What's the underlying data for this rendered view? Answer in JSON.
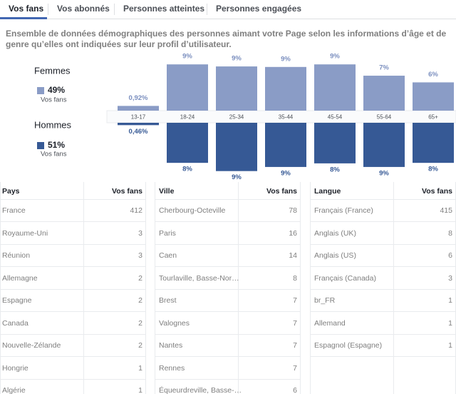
{
  "tabs": [
    "Vos fans",
    "Vos abonnés",
    "Personnes atteintes",
    "Personnes engagées"
  ],
  "description": "Ensemble de données démographiques des personnes aimant votre Page selon les informations d’âge et de genre qu’elles ont indiquées sur leur profil d’utilisateur.",
  "chart_data": {
    "type": "bar",
    "categories": [
      "13-17",
      "18-24",
      "25-34",
      "35-44",
      "45-54",
      "55-64",
      "65+"
    ],
    "series": [
      {
        "name": "Femmes",
        "color": "#8a9cc6",
        "share": {
          "value": 49,
          "label": "49%"
        },
        "share_caption": "Vos fans",
        "values": [
          0.92,
          9.0,
          8.6,
          8.5,
          9.0,
          6.8,
          5.5
        ],
        "value_labels": [
          "0,92%",
          "9%",
          "9%",
          "9%",
          "9%",
          "7%",
          "6%"
        ]
      },
      {
        "name": "Hommes",
        "color": "#365995",
        "share": {
          "value": 51,
          "label": "51%"
        },
        "share_caption": "Vos fans",
        "values": [
          0.46,
          7.8,
          9.4,
          8.6,
          7.9,
          8.6,
          7.8
        ],
        "value_labels": [
          "0,46%",
          "8%",
          "9%",
          "9%",
          "8%",
          "9%",
          "8%"
        ]
      }
    ]
  },
  "tables": [
    {
      "headers": [
        "Pays",
        "Vos fans"
      ],
      "rows": [
        [
          "France",
          412
        ],
        [
          "Royaume-Uni",
          3
        ],
        [
          "Réunion",
          3
        ],
        [
          "Allemagne",
          2
        ],
        [
          "Espagne",
          2
        ],
        [
          "Canada",
          2
        ],
        [
          "Nouvelle-Zélande",
          2
        ],
        [
          "Hongrie",
          1
        ],
        [
          "Algérie",
          1
        ]
      ]
    },
    {
      "headers": [
        "Ville",
        "Vos fans"
      ],
      "rows": [
        [
          "Cherbourg-Octeville",
          78
        ],
        [
          "Paris",
          16
        ],
        [
          "Caen",
          14
        ],
        [
          "Tourlaville, Basse-Nor…",
          8
        ],
        [
          "Brest",
          7
        ],
        [
          "Valognes",
          7
        ],
        [
          "Nantes",
          7
        ],
        [
          "Rennes",
          7
        ],
        [
          "Équeurdreville, Basse-…",
          6
        ]
      ]
    },
    {
      "headers": [
        "Langue",
        "Vos fans"
      ],
      "rows": [
        [
          "Français (France)",
          415
        ],
        [
          "Anglais (UK)",
          8
        ],
        [
          "Anglais (US)",
          6
        ],
        [
          "Français (Canada)",
          3
        ],
        [
          "br_FR",
          1
        ],
        [
          "Allemand",
          1
        ],
        [
          "Espagnol (Espagne)",
          1
        ]
      ]
    }
  ]
}
